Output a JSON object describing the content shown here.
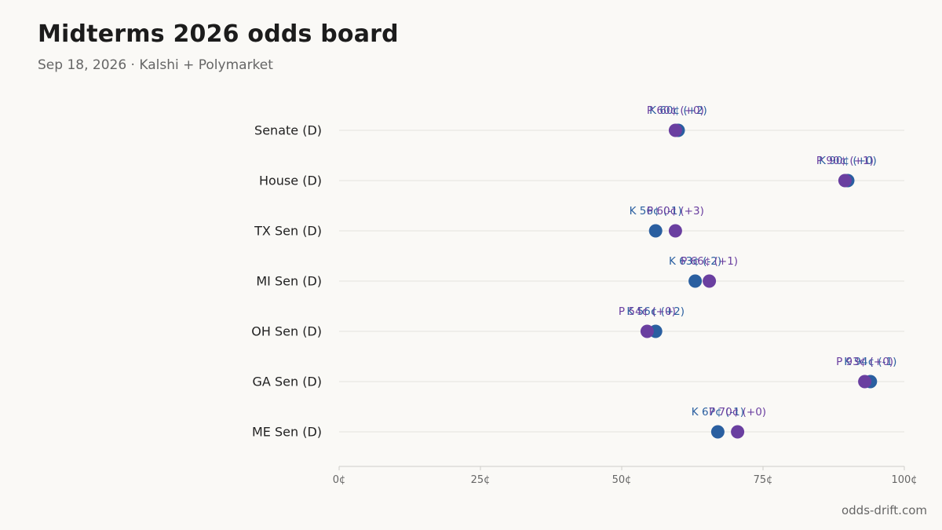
{
  "title": "Midterms 2026 odds board",
  "subtitle": "Sep 18, 2026 · Kalshi + Polymarket",
  "footer": "odds-drift.com",
  "colors": {
    "kalshi": "#2a5fa0",
    "polymarket": "#6a3fa0",
    "grid": "#e4e2de",
    "axis": "#cfcdc9"
  },
  "chart_data": {
    "type": "scatter",
    "categories": [
      "Senate (D)",
      "House (D)",
      "TX Sen (D)",
      "MI Sen (D)",
      "OH Sen (D)",
      "GA Sen (D)",
      "ME Sen (D)"
    ],
    "xlim": [
      0,
      100
    ],
    "xticks": [
      "0¢",
      "25¢",
      "50¢",
      "75¢",
      "100¢"
    ],
    "series": [
      {
        "name": "K",
        "color": "#2a5fa0",
        "values": [
          60,
          90,
          56,
          63,
          56,
          94,
          67
        ],
        "labels": [
          "K 60¢ (+2)",
          "K 90¢ (+0)",
          "K 56¢ (-1)",
          "K 63¢ (-2)",
          "K 56¢ (+2)",
          "K 94¢ (-1)",
          "K 67¢ (-1)"
        ]
      },
      {
        "name": "P",
        "color": "#6a3fa0",
        "values": [
          59.5,
          89.5,
          59.5,
          65.5,
          54.5,
          93,
          70.5
        ],
        "labels": [
          "P 60¢ (+0)",
          "P 90¢ (+1)",
          "P 60¢ (+3)",
          "P 66¢ (+1)",
          "P 54¢ (+0)",
          "P 93¢ (+0)",
          "P 70¢ (+0)"
        ]
      }
    ]
  }
}
